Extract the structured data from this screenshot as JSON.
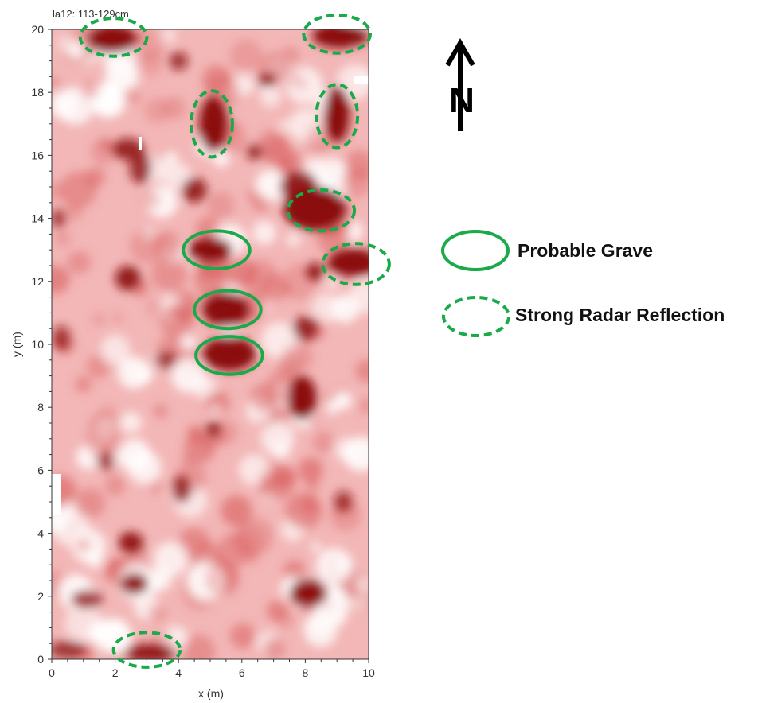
{
  "chart_data": {
    "type": "heatmap",
    "title": "la12: 113-129cm",
    "xlabel": "x (m)",
    "ylabel": "y (m)",
    "xlim": [
      0,
      10
    ],
    "ylim": [
      0,
      20
    ],
    "x_ticks": [
      "0",
      "2",
      "4",
      "6",
      "8",
      "10"
    ],
    "y_ticks": [
      "0",
      "2",
      "4",
      "6",
      "8",
      "10",
      "12",
      "14",
      "16",
      "18",
      "20"
    ],
    "colormap": [
      "#ffffff",
      "#8b0a0a"
    ],
    "hotspots": [
      {
        "x": 1.9,
        "y": 19.7,
        "rx": 0.8,
        "ry": 0.45,
        "level": 1.0
      },
      {
        "x": 9.1,
        "y": 19.8,
        "rx": 0.9,
        "ry": 0.4,
        "level": 1.0
      },
      {
        "x": 5.1,
        "y": 17.0,
        "rx": 0.45,
        "ry": 0.9,
        "level": 1.0
      },
      {
        "x": 9.0,
        "y": 17.3,
        "rx": 0.4,
        "ry": 0.9,
        "level": 1.0
      },
      {
        "x": 2.4,
        "y": 16.2,
        "rx": 0.5,
        "ry": 0.35,
        "level": 0.85
      },
      {
        "x": 2.8,
        "y": 15.6,
        "rx": 0.35,
        "ry": 0.5,
        "level": 0.8
      },
      {
        "x": 4.5,
        "y": 14.9,
        "rx": 0.4,
        "ry": 0.4,
        "level": 0.85
      },
      {
        "x": 8.3,
        "y": 14.3,
        "rx": 1.0,
        "ry": 0.7,
        "level": 1.0
      },
      {
        "x": 7.8,
        "y": 15.0,
        "rx": 0.6,
        "ry": 0.5,
        "level": 0.9
      },
      {
        "x": 5.0,
        "y": 13.0,
        "rx": 0.7,
        "ry": 0.4,
        "level": 1.0
      },
      {
        "x": 9.5,
        "y": 12.6,
        "rx": 0.8,
        "ry": 0.45,
        "level": 1.0
      },
      {
        "x": 2.4,
        "y": 12.1,
        "rx": 0.4,
        "ry": 0.4,
        "level": 0.9
      },
      {
        "x": 5.5,
        "y": 11.1,
        "rx": 0.75,
        "ry": 0.55,
        "level": 1.0
      },
      {
        "x": 5.6,
        "y": 9.7,
        "rx": 0.85,
        "ry": 0.55,
        "level": 1.0
      },
      {
        "x": 7.9,
        "y": 8.3,
        "rx": 0.45,
        "ry": 0.7,
        "level": 1.0
      },
      {
        "x": 8.0,
        "y": 10.5,
        "rx": 0.4,
        "ry": 0.4,
        "level": 0.8
      },
      {
        "x": 8.3,
        "y": 12.3,
        "rx": 0.3,
        "ry": 0.3,
        "level": 0.85
      },
      {
        "x": 4.1,
        "y": 5.4,
        "rx": 0.3,
        "ry": 0.45,
        "level": 0.8
      },
      {
        "x": 2.5,
        "y": 3.7,
        "rx": 0.4,
        "ry": 0.35,
        "level": 0.85
      },
      {
        "x": 2.6,
        "y": 2.4,
        "rx": 0.45,
        "ry": 0.35,
        "level": 0.9
      },
      {
        "x": 8.1,
        "y": 2.1,
        "rx": 0.6,
        "ry": 0.45,
        "level": 0.95
      },
      {
        "x": 1.1,
        "y": 1.9,
        "rx": 0.5,
        "ry": 0.3,
        "level": 0.75
      },
      {
        "x": 3.1,
        "y": 0.2,
        "rx": 0.8,
        "ry": 0.3,
        "level": 0.9
      },
      {
        "x": 0.5,
        "y": 0.3,
        "rx": 0.6,
        "ry": 0.3,
        "level": 0.75
      },
      {
        "x": 6.8,
        "y": 18.4,
        "rx": 0.3,
        "ry": 0.25,
        "level": 0.8
      },
      {
        "x": 4.0,
        "y": 19.0,
        "rx": 0.3,
        "ry": 0.3,
        "level": 0.75
      },
      {
        "x": 6.4,
        "y": 16.1,
        "rx": 0.25,
        "ry": 0.25,
        "level": 0.8
      },
      {
        "x": 3.6,
        "y": 9.5,
        "rx": 0.35,
        "ry": 0.3,
        "level": 0.7
      },
      {
        "x": 5.1,
        "y": 7.3,
        "rx": 0.25,
        "ry": 0.25,
        "level": 0.8
      },
      {
        "x": 1.7,
        "y": 6.3,
        "rx": 0.3,
        "ry": 0.3,
        "level": 0.7
      },
      {
        "x": 9.2,
        "y": 5.0,
        "rx": 0.3,
        "ry": 0.35,
        "level": 0.7
      },
      {
        "x": 0.3,
        "y": 10.2,
        "rx": 0.3,
        "ry": 0.4,
        "level": 0.7
      },
      {
        "x": 0.2,
        "y": 14.0,
        "rx": 0.25,
        "ry": 0.3,
        "level": 0.7
      }
    ],
    "outlines": [
      {
        "kind": "probable-grave",
        "x": 5.2,
        "y": 13.0,
        "rx": 1.05,
        "ry": 0.6
      },
      {
        "kind": "probable-grave",
        "x": 5.55,
        "y": 11.1,
        "rx": 1.05,
        "ry": 0.6
      },
      {
        "kind": "probable-grave",
        "x": 5.6,
        "y": 9.65,
        "rx": 1.05,
        "ry": 0.6
      },
      {
        "kind": "strong-radar-reflection",
        "x": 1.95,
        "y": 19.75,
        "rx": 1.05,
        "ry": 0.6
      },
      {
        "kind": "strong-radar-reflection",
        "x": 9.0,
        "y": 19.85,
        "rx": 1.05,
        "ry": 0.6
      },
      {
        "kind": "strong-radar-reflection",
        "x": 5.05,
        "y": 17.0,
        "rx": 0.65,
        "ry": 1.05
      },
      {
        "kind": "strong-radar-reflection",
        "x": 9.0,
        "y": 17.25,
        "rx": 0.65,
        "ry": 1.0
      },
      {
        "kind": "strong-radar-reflection",
        "x": 8.5,
        "y": 14.25,
        "rx": 1.05,
        "ry": 0.65
      },
      {
        "kind": "strong-radar-reflection",
        "x": 9.6,
        "y": 12.55,
        "rx": 1.05,
        "ry": 0.65
      },
      {
        "kind": "strong-radar-reflection",
        "x": 3.0,
        "y": 0.3,
        "rx": 1.05,
        "ry": 0.55
      }
    ]
  },
  "legend": {
    "probable_grave": "Probable Grave",
    "strong_reflection": "Strong Radar Reflection"
  },
  "north_arrow": {
    "label": "N"
  },
  "colors": {
    "outline": "#1aaa4a",
    "arrow": "#000000"
  }
}
